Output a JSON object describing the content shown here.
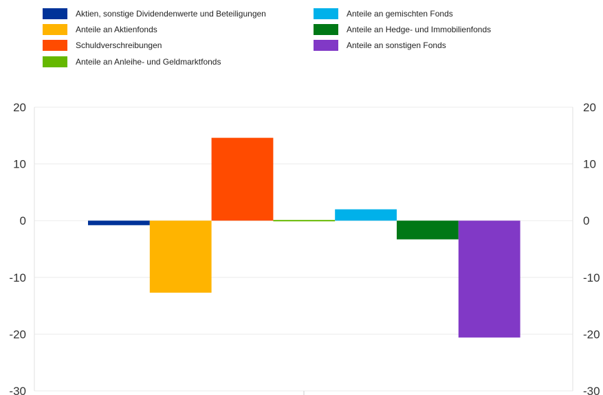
{
  "chart_data": {
    "type": "bar",
    "title": "",
    "xlabel": "",
    "ylabel": "",
    "ylim": [
      -30,
      20
    ],
    "yticks": [
      20,
      10,
      0,
      -10,
      -20,
      -30
    ],
    "grid": true,
    "legend_position": "top",
    "series": [
      {
        "name": "Aktien, sonstige Dividendenwerte und Beteiligungen",
        "value": -0.8,
        "color": "#003399"
      },
      {
        "name": "Anteile an Aktienfonds",
        "value": -12.7,
        "color": "#FFB400"
      },
      {
        "name": "Schuldverschreibungen",
        "value": 14.6,
        "color": "#FF4B00"
      },
      {
        "name": "Anteile an Anleihe- und Geldmarktfonds",
        "value": 0.2,
        "color": "#65B800"
      },
      {
        "name": "Anteile an gemischten Fonds",
        "value": 2.0,
        "color": "#00B1EA"
      },
      {
        "name": "Anteile an Hedge- und Immobilienfonds",
        "value": -3.3,
        "color": "#007816"
      },
      {
        "name": "Anteile an sonstigen Fonds",
        "value": -20.6,
        "color": "#8139C6"
      }
    ]
  }
}
